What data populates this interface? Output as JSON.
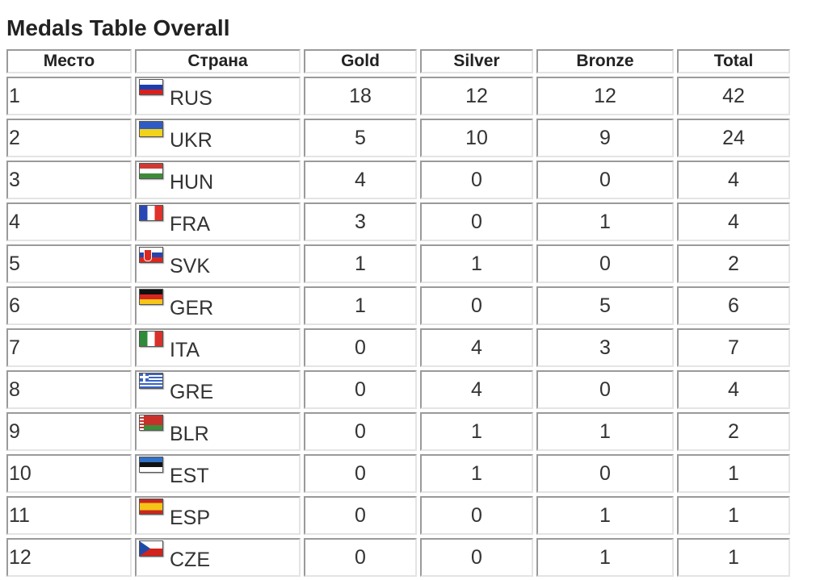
{
  "title": "Medals Table Overall",
  "columns": {
    "place": "Место",
    "country": "Страна",
    "gold": "Gold",
    "silver": "Silver",
    "bronze": "Bronze",
    "total": "Total"
  },
  "rows": [
    {
      "place": "1",
      "code": "RUS",
      "flag": "flag-russia-icon",
      "gold": "18",
      "silver": "12",
      "bronze": "12",
      "total": "42"
    },
    {
      "place": "2",
      "code": "UKR",
      "flag": "flag-ukraine-icon",
      "gold": "5",
      "silver": "10",
      "bronze": "9",
      "total": "24"
    },
    {
      "place": "3",
      "code": "HUN",
      "flag": "flag-hungary-icon",
      "gold": "4",
      "silver": "0",
      "bronze": "0",
      "total": "4"
    },
    {
      "place": "4",
      "code": "FRA",
      "flag": "flag-france-icon",
      "gold": "3",
      "silver": "0",
      "bronze": "1",
      "total": "4"
    },
    {
      "place": "5",
      "code": "SVK",
      "flag": "flag-slovakia-icon",
      "gold": "1",
      "silver": "1",
      "bronze": "0",
      "total": "2"
    },
    {
      "place": "6",
      "code": "GER",
      "flag": "flag-germany-icon",
      "gold": "1",
      "silver": "0",
      "bronze": "5",
      "total": "6"
    },
    {
      "place": "7",
      "code": "ITA",
      "flag": "flag-italy-icon",
      "gold": "0",
      "silver": "4",
      "bronze": "3",
      "total": "7"
    },
    {
      "place": "8",
      "code": "GRE",
      "flag": "flag-greece-icon",
      "gold": "0",
      "silver": "4",
      "bronze": "0",
      "total": "4"
    },
    {
      "place": "9",
      "code": "BLR",
      "flag": "flag-belarus-icon",
      "gold": "0",
      "silver": "1",
      "bronze": "1",
      "total": "2"
    },
    {
      "place": "10",
      "code": "EST",
      "flag": "flag-estonia-icon",
      "gold": "0",
      "silver": "1",
      "bronze": "0",
      "total": "1"
    },
    {
      "place": "11",
      "code": "ESP",
      "flag": "flag-spain-icon",
      "gold": "0",
      "silver": "0",
      "bronze": "1",
      "total": "1"
    },
    {
      "place": "12",
      "code": "CZE",
      "flag": "flag-czechia-icon",
      "gold": "0",
      "silver": "0",
      "bronze": "1",
      "total": "1"
    }
  ]
}
